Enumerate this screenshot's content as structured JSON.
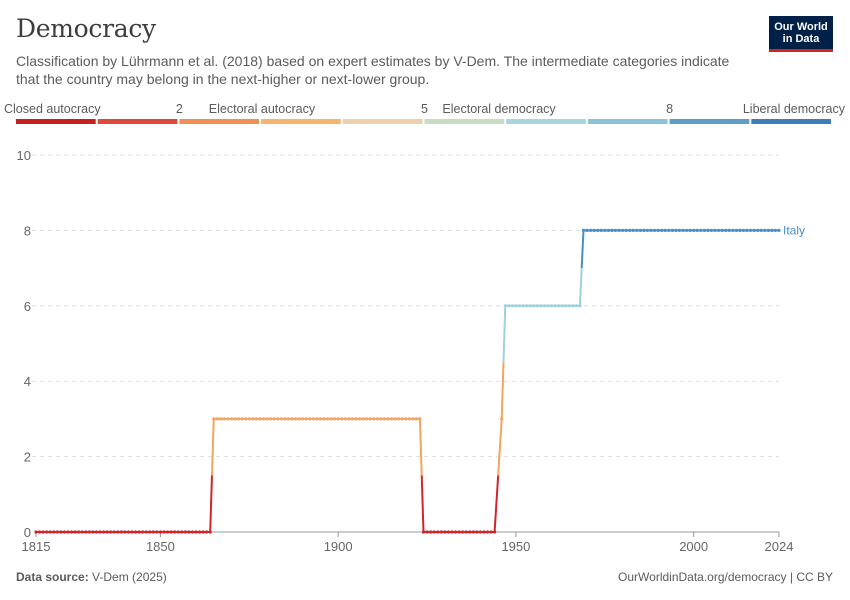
{
  "header": {
    "title": "Democracy",
    "subtitle": "Classification by Lührmann et al. (2018) based on expert estimates by V-Dem. The intermediate categories indicate that the country may belong in the next-higher or next-lower group.",
    "logo_line1": "Our World",
    "logo_line2": "in Data"
  },
  "footer": {
    "source_label": "Data source:",
    "source_value": "V-Dem (2025)",
    "credit": "OurWorldinData.org/democracy | CC BY"
  },
  "legend": {
    "labels": [
      {
        "text": "Closed autocracy",
        "value": 0,
        "anchor": "start"
      },
      {
        "text": "2",
        "value": 2,
        "anchor": "middle"
      },
      {
        "text": "Electoral autocracy",
        "value": 3,
        "anchor": "middle"
      },
      {
        "text": "5",
        "value": 5,
        "anchor": "middle"
      },
      {
        "text": "Electoral democracy",
        "value": 6,
        "anchor": "middle"
      },
      {
        "text": "8",
        "value": 8,
        "anchor": "middle"
      },
      {
        "text": "Liberal democracy",
        "value": 9,
        "anchor": "end"
      }
    ],
    "bin_colors": [
      "#ca1f22",
      "#e0493a",
      "#f08f53",
      "#f6b56e",
      "#ead1a9",
      "#c8dcc3",
      "#a7d7de",
      "#8cc3d8",
      "#5f9ec9",
      "#3d7eb8"
    ]
  },
  "colors": {
    "closed_autocracy": "#d0262b",
    "electoral_autocracy": "#f2a55f",
    "electoral_democracy": "#9fd1dc",
    "liberal_democracy": "#4a8ec4",
    "grid": "#dddddd",
    "axis_text": "#666666"
  },
  "chart_data": {
    "type": "line",
    "title": "Democracy",
    "xlabel": "",
    "ylabel": "",
    "xlim": [
      1815,
      2024
    ],
    "ylim": [
      0,
      10
    ],
    "x_ticks": [
      1815,
      1850,
      1900,
      1950,
      2000,
      2024
    ],
    "y_ticks": [
      0,
      2,
      4,
      6,
      8,
      10
    ],
    "grid": true,
    "series": [
      {
        "name": "Italy",
        "segments": [
          {
            "x_start": 1815,
            "x_end": 1864,
            "y": 0
          },
          {
            "x_start": 1865,
            "x_end": 1923,
            "y": 3
          },
          {
            "x_start": 1924,
            "x_end": 1944,
            "y": 0
          },
          {
            "x_start": 1946,
            "x_end": 1946,
            "y": 3
          },
          {
            "x_start": 1947,
            "x_end": 1968,
            "y": 6
          },
          {
            "x_start": 1969,
            "x_end": 2024,
            "y": 8
          }
        ]
      }
    ]
  }
}
